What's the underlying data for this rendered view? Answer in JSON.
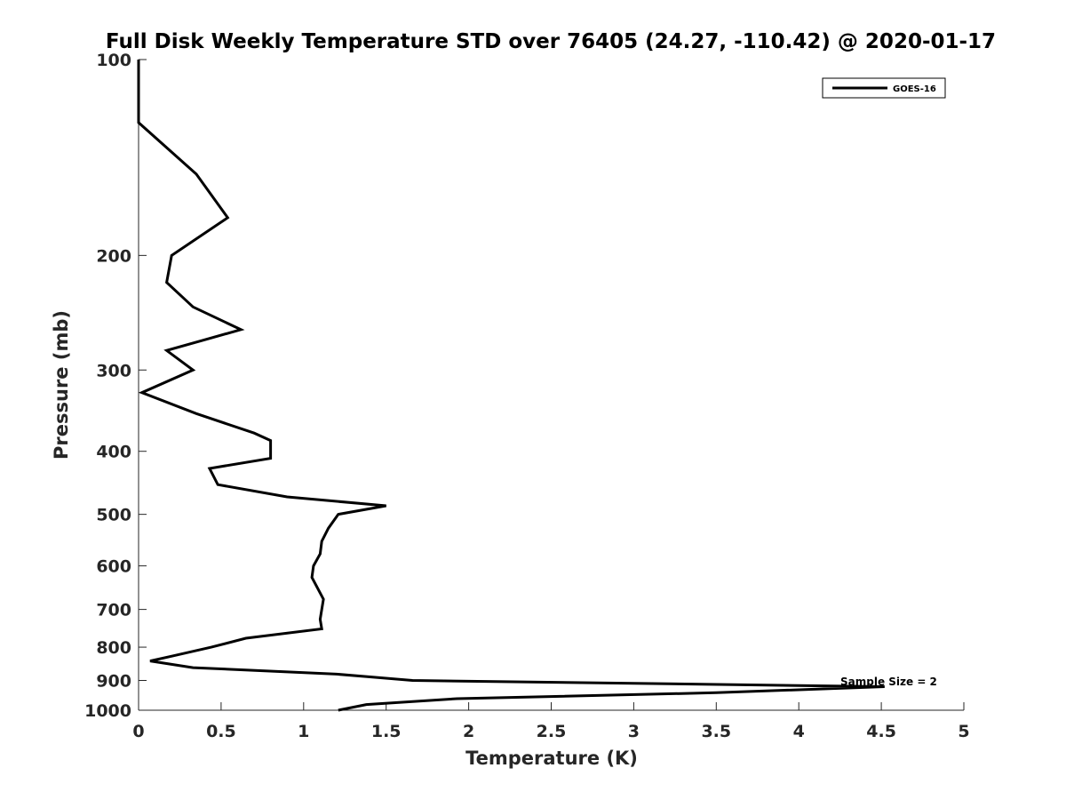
{
  "chart_data": {
    "type": "line",
    "title": "Full Disk Weekly Temperature STD over 76405 (24.27, -110.42) @ 2020-01-17",
    "xlabel": "Temperature (K)",
    "ylabel": "Pressure (mb)",
    "xlim": [
      0,
      5
    ],
    "ylim": [
      100,
      1000
    ],
    "y_scale": "log",
    "y_reversed": true,
    "grid": false,
    "legend_position": "top-right",
    "x_ticks": [
      "0",
      "0.5",
      "1",
      "1.5",
      "2",
      "2.5",
      "3",
      "3.5",
      "4",
      "4.5",
      "5"
    ],
    "y_ticks": [
      "100",
      "200",
      "300",
      "400",
      "500",
      "600",
      "700",
      "800",
      "900",
      "1000"
    ],
    "annotation": "Sample Size = 2",
    "series": [
      {
        "name": "GOES-16",
        "color": "#000000",
        "points": [
          [
            0.0,
            100
          ],
          [
            0.0,
            125
          ],
          [
            0.35,
            150
          ],
          [
            0.54,
            175
          ],
          [
            0.2,
            200
          ],
          [
            0.17,
            220
          ],
          [
            0.33,
            240
          ],
          [
            0.62,
            260
          ],
          [
            0.17,
            280
          ],
          [
            0.33,
            300
          ],
          [
            0.02,
            325
          ],
          [
            0.35,
            350
          ],
          [
            0.7,
            375
          ],
          [
            0.8,
            385
          ],
          [
            0.8,
            410
          ],
          [
            0.43,
            425
          ],
          [
            0.48,
            450
          ],
          [
            0.9,
            470
          ],
          [
            1.5,
            485
          ],
          [
            1.21,
            500
          ],
          [
            1.15,
            525
          ],
          [
            1.11,
            550
          ],
          [
            1.1,
            575
          ],
          [
            1.06,
            600
          ],
          [
            1.05,
            625
          ],
          [
            1.12,
            675
          ],
          [
            1.11,
            700
          ],
          [
            1.1,
            725
          ],
          [
            1.11,
            750
          ],
          [
            0.65,
            775
          ],
          [
            0.44,
            800
          ],
          [
            0.21,
            825
          ],
          [
            0.07,
            840
          ],
          [
            0.33,
            860
          ],
          [
            1.2,
            880
          ],
          [
            1.66,
            900
          ],
          [
            4.52,
            920
          ],
          [
            3.5,
            940
          ],
          [
            1.93,
            960
          ],
          [
            1.38,
            980
          ],
          [
            1.21,
            1000
          ]
        ]
      }
    ]
  }
}
